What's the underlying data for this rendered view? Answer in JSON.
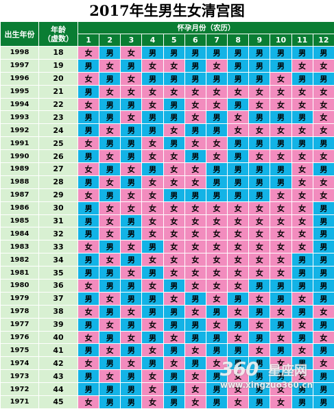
{
  "title": "2017年生男生女清宫图",
  "header": {
    "birth_year_label": "出生年份",
    "age_label": "年龄",
    "age_sub_label": "（虚数）",
    "month_group_label": "怀孕月份（农历）",
    "months": [
      "1",
      "2",
      "3",
      "4",
      "5",
      "6",
      "7",
      "8",
      "9",
      "10",
      "11",
      "12"
    ]
  },
  "legend": {
    "boy": "男",
    "girl": "女"
  },
  "colors": {
    "boy": "#13b3e6",
    "girl": "#f28cbe",
    "header": "#0a7d33",
    "label_cells": "#d8f0d2"
  },
  "rows": [
    {
      "year": "1998",
      "age": "18",
      "cells": [
        "女",
        "男",
        "女",
        "男",
        "男",
        "男",
        "男",
        "男",
        "男",
        "男",
        "男",
        "男"
      ]
    },
    {
      "year": "1997",
      "age": "19",
      "cells": [
        "男",
        "女",
        "男",
        "女",
        "女",
        "男",
        "女",
        "男",
        "男",
        "男",
        "女",
        "女"
      ]
    },
    {
      "year": "1996",
      "age": "20",
      "cells": [
        "女",
        "男",
        "女",
        "男",
        "男",
        "男",
        "男",
        "男",
        "男",
        "女",
        "男",
        "男"
      ]
    },
    {
      "year": "1995",
      "age": "21",
      "cells": [
        "男",
        "女",
        "女",
        "女",
        "女",
        "女",
        "女",
        "女",
        "女",
        "女",
        "女",
        "女"
      ]
    },
    {
      "year": "1994",
      "age": "22",
      "cells": [
        "女",
        "男",
        "男",
        "女",
        "男",
        "女",
        "女",
        "男",
        "女",
        "女",
        "女",
        "女"
      ]
    },
    {
      "year": "1993",
      "age": "23",
      "cells": [
        "男",
        "男",
        "女",
        "男",
        "男",
        "女",
        "男",
        "女",
        "男",
        "男",
        "男",
        "女"
      ]
    },
    {
      "year": "1992",
      "age": "24",
      "cells": [
        "男",
        "女",
        "男",
        "男",
        "女",
        "男",
        "男",
        "女",
        "女",
        "女",
        "女",
        "女"
      ]
    },
    {
      "year": "1991",
      "age": "25",
      "cells": [
        "女",
        "男",
        "男",
        "女",
        "男",
        "女",
        "女",
        "男",
        "男",
        "男",
        "男",
        "男"
      ]
    },
    {
      "year": "1990",
      "age": "26",
      "cells": [
        "男",
        "女",
        "男",
        "女",
        "女",
        "男",
        "女",
        "男",
        "女",
        "女",
        "女",
        "女"
      ]
    },
    {
      "year": "1989",
      "age": "27",
      "cells": [
        "女",
        "男",
        "女",
        "男",
        "女",
        "女",
        "男",
        "男",
        "男",
        "男",
        "女",
        "男"
      ]
    },
    {
      "year": "1988",
      "age": "28",
      "cells": [
        "男",
        "女",
        "男",
        "女",
        "女",
        "女",
        "男",
        "男",
        "男",
        "男",
        "女",
        "女"
      ]
    },
    {
      "year": "1987",
      "age": "29",
      "cells": [
        "女",
        "男",
        "女",
        "女",
        "男",
        "男",
        "男",
        "男",
        "男",
        "女",
        "女",
        "女"
      ]
    },
    {
      "year": "1986",
      "age": "30",
      "cells": [
        "男",
        "女",
        "女",
        "女",
        "女",
        "女",
        "女",
        "女",
        "女",
        "女",
        "女",
        "男"
      ]
    },
    {
      "year": "1985",
      "age": "31",
      "cells": [
        "男",
        "女",
        "男",
        "女",
        "女",
        "女",
        "女",
        "女",
        "女",
        "女",
        "女",
        "男"
      ]
    },
    {
      "year": "1984",
      "age": "32",
      "cells": [
        "男",
        "女",
        "男",
        "女",
        "女",
        "女",
        "女",
        "女",
        "女",
        "女",
        "女",
        "男"
      ]
    },
    {
      "year": "1983",
      "age": "33",
      "cells": [
        "女",
        "男",
        "女",
        "男",
        "女",
        "女",
        "女",
        "女",
        "女",
        "女",
        "女",
        "男"
      ]
    },
    {
      "year": "1982",
      "age": "34",
      "cells": [
        "男",
        "女",
        "男",
        "女",
        "女",
        "女",
        "女",
        "女",
        "女",
        "女",
        "男",
        "男"
      ]
    },
    {
      "year": "1981",
      "age": "35",
      "cells": [
        "男",
        "男",
        "女",
        "男",
        "女",
        "女",
        "女",
        "女",
        "女",
        "女",
        "男",
        "男"
      ]
    },
    {
      "year": "1980",
      "age": "36",
      "cells": [
        "女",
        "男",
        "男",
        "女",
        "男",
        "女",
        "女",
        "女",
        "男",
        "男",
        "男",
        "男"
      ]
    },
    {
      "year": "1979",
      "age": "37",
      "cells": [
        "男",
        "女",
        "男",
        "男",
        "女",
        "男",
        "女",
        "男",
        "女",
        "男",
        "女",
        "男"
      ]
    },
    {
      "year": "1978",
      "age": "38",
      "cells": [
        "女",
        "男",
        "女",
        "男",
        "男",
        "女",
        "男",
        "女",
        "男",
        "女",
        "男",
        "女"
      ]
    },
    {
      "year": "1977",
      "age": "39",
      "cells": [
        "男",
        "女",
        "男",
        "女",
        "男",
        "男",
        "女",
        "男",
        "女",
        "男",
        "女",
        "男"
      ]
    },
    {
      "year": "1976",
      "age": "40",
      "cells": [
        "女",
        "男",
        "女",
        "男",
        "女",
        "男",
        "男",
        "女",
        "男",
        "女",
        "男",
        "女"
      ]
    },
    {
      "year": "1975",
      "age": "41",
      "cells": [
        "男",
        "女",
        "男",
        "女",
        "男",
        "女",
        "男",
        "男",
        "女",
        "男",
        "女",
        "男"
      ]
    },
    {
      "year": "1974",
      "age": "42",
      "cells": [
        "女",
        "男",
        "女",
        "男",
        "女",
        "男",
        "女",
        "男",
        "男",
        "女",
        "男",
        "女"
      ]
    },
    {
      "year": "1973",
      "age": "43",
      "cells": [
        "男",
        "女",
        "男",
        "女",
        "男",
        "女",
        "男",
        "女",
        "男",
        "男",
        "女",
        "男"
      ]
    },
    {
      "year": "1972",
      "age": "44",
      "cells": [
        "男",
        "男",
        "男",
        "女",
        "男",
        "女",
        "男",
        "女",
        "男",
        "女",
        "男",
        "男"
      ]
    },
    {
      "year": "1971",
      "age": "45",
      "cells": [
        "女",
        "男",
        "男",
        "女",
        "男",
        "女",
        "男",
        "女",
        "男",
        "女",
        "男",
        "男"
      ]
    }
  ],
  "watermark": {
    "logo": "360",
    "brand": "星座网",
    "url": "www.xingzuo360.cn"
  }
}
